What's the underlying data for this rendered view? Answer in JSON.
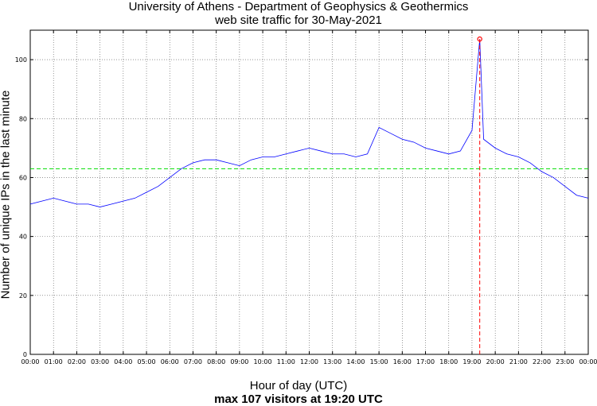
{
  "chart_data": {
    "type": "line",
    "title": "University of Athens - Department of Geophysics & Geothermics",
    "subtitle": "web site traffic for 30-May-2021",
    "xlabel": "Hour of day (UTC)",
    "ylabel": "Number of unique IPs in the last minute",
    "footnote": "max 107 visitors at 19:20 UTC",
    "x_tick_labels": [
      "00:00",
      "01:00",
      "02:00",
      "03:00",
      "04:00",
      "05:00",
      "06:00",
      "07:00",
      "08:00",
      "09:00",
      "10:00",
      "11:00",
      "12:00",
      "13:00",
      "14:00",
      "15:00",
      "16:00",
      "17:00",
      "18:00",
      "19:00",
      "20:00",
      "21:00",
      "22:00",
      "23:00",
      "00:00"
    ],
    "y_ticks": [
      0,
      20,
      40,
      60,
      80,
      100
    ],
    "xlim_hours": [
      0,
      24
    ],
    "ylim": [
      0,
      110
    ],
    "grid": true,
    "series": [
      {
        "color": "#0000ff",
        "x_hours": [
          0,
          0.5,
          1,
          1.5,
          2,
          2.5,
          3,
          3.5,
          4,
          4.5,
          5,
          5.5,
          6,
          6.5,
          7,
          7.5,
          8,
          8.5,
          9,
          9.5,
          10,
          10.5,
          11,
          11.5,
          12,
          12.5,
          13,
          13.5,
          14,
          14.5,
          15,
          15.5,
          16,
          16.5,
          17,
          17.5,
          18,
          18.5,
          19,
          19.333,
          19.5,
          20,
          20.5,
          21,
          21.5,
          22,
          22.5,
          23,
          23.5,
          24
        ],
        "values": [
          51,
          52,
          53,
          52,
          51,
          51,
          50,
          51,
          52,
          53,
          55,
          57,
          60,
          63,
          65,
          66,
          66,
          65,
          64,
          66,
          67,
          67,
          68,
          69,
          70,
          69,
          68,
          68,
          67,
          68,
          77,
          75,
          73,
          72,
          70,
          69,
          68,
          69,
          76,
          107,
          73,
          70,
          68,
          67,
          65,
          62,
          60,
          57,
          54,
          53
        ]
      }
    ],
    "average_line": {
      "value": 63,
      "color": "#00dd00"
    },
    "max_marker": {
      "x_hour": 19.333,
      "value": 107,
      "color": "#ff0000"
    }
  }
}
